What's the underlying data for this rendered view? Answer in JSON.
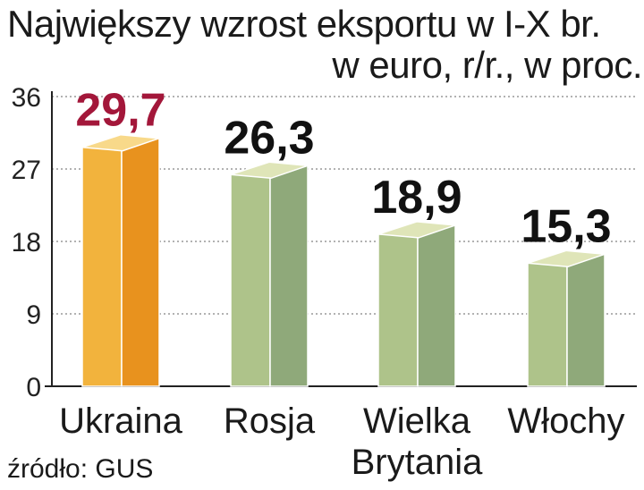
{
  "chart_data": {
    "type": "bar",
    "title_line1": "Największy wzrost eksportu w I-X br.",
    "title_line2": "w euro, r/r., w proc.",
    "categories": [
      {
        "line1": "Ukraina",
        "line2": ""
      },
      {
        "line1": "Rosja",
        "line2": ""
      },
      {
        "line1": "Wielka",
        "line2": "Brytania"
      },
      {
        "line1": "Włochy",
        "line2": ""
      }
    ],
    "values": [
      29.7,
      26.3,
      18.9,
      15.3
    ],
    "data_labels": [
      "29,7",
      "26,3",
      "18,9",
      "15,3"
    ],
    "ylim": [
      0,
      36
    ],
    "yticks": [
      "0",
      "9",
      "18",
      "27",
      "36"
    ],
    "ytick_values": [
      0,
      9,
      18,
      27,
      36
    ],
    "grid": true,
    "source": "źródło: GUS",
    "colors": {
      "highlight_front": "#f2b33d",
      "highlight_side": "#e8921e",
      "highlight_top": "#f8d98a",
      "highlight_label": "#a3173a",
      "bar_front": "#aec38a",
      "bar_side": "#8fa97a",
      "bar_top": "#dfe5b8",
      "label": "#111111",
      "grid": "#999999"
    }
  }
}
